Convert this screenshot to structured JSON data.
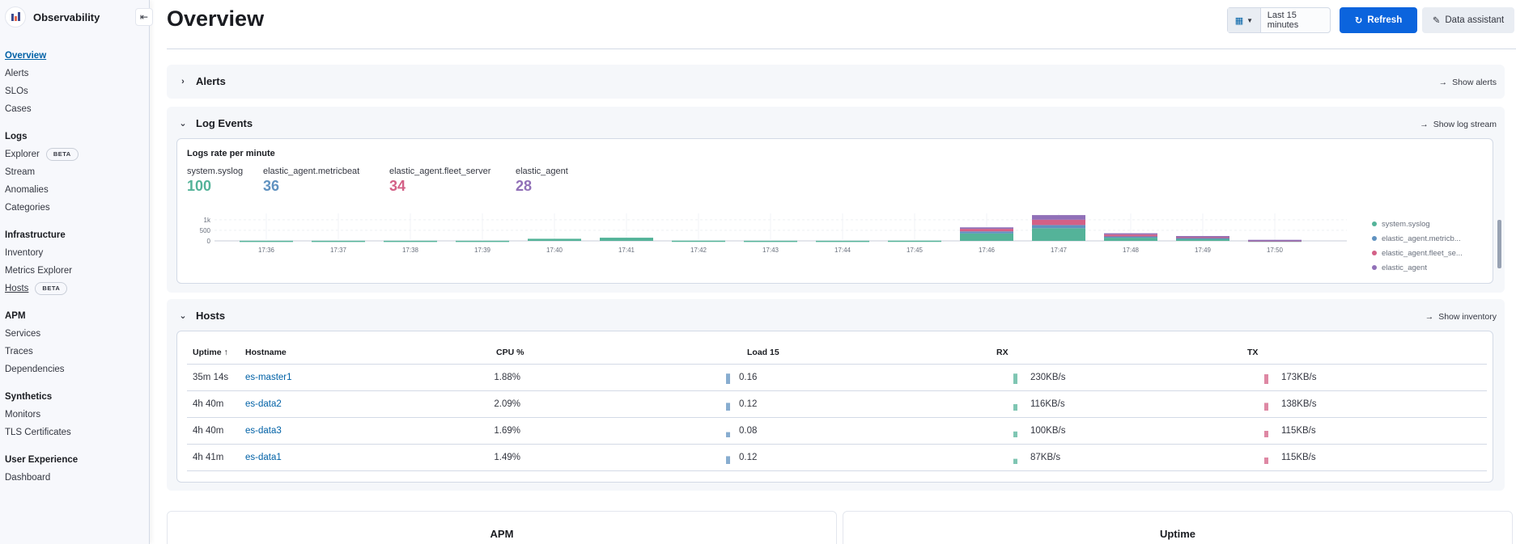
{
  "app": {
    "title": "Observability"
  },
  "sidebar": {
    "items": [
      {
        "label": "Overview",
        "active": true
      },
      {
        "label": "Alerts"
      },
      {
        "label": "SLOs"
      },
      {
        "label": "Cases"
      }
    ],
    "groups": [
      {
        "title": "Logs",
        "items": [
          {
            "label": "Explorer",
            "badge": "BETA"
          },
          {
            "label": "Stream"
          },
          {
            "label": "Anomalies"
          },
          {
            "label": "Categories"
          }
        ]
      },
      {
        "title": "Infrastructure",
        "items": [
          {
            "label": "Inventory"
          },
          {
            "label": "Metrics Explorer"
          },
          {
            "label": "Hosts",
            "badge": "BETA"
          }
        ]
      },
      {
        "title": "APM",
        "items": [
          {
            "label": "Services"
          },
          {
            "label": "Traces"
          },
          {
            "label": "Dependencies"
          }
        ]
      },
      {
        "title": "Synthetics",
        "items": [
          {
            "label": "Monitors"
          },
          {
            "label": "TLS Certificates"
          }
        ]
      },
      {
        "title": "User Experience",
        "items": [
          {
            "label": "Dashboard"
          }
        ]
      }
    ]
  },
  "header": {
    "title": "Overview",
    "date_range": "Last 15 minutes",
    "refresh_label": "Refresh",
    "assistant_label": "Data assistant"
  },
  "alerts": {
    "title": "Alerts",
    "link": "Show alerts"
  },
  "log_events": {
    "title": "Log Events",
    "link": "Show log stream",
    "chart_title": "Logs rate per minute",
    "stats": [
      {
        "name": "system.syslog",
        "value": "100",
        "color": "#54b399"
      },
      {
        "name": "elastic_agent.metricbeat",
        "value": "36",
        "color": "#6092c0"
      },
      {
        "name": "elastic_agent.fleet_server",
        "value": "34",
        "color": "#d36086"
      },
      {
        "name": "elastic_agent",
        "value": "28",
        "color": "#9170b8"
      }
    ],
    "legend": [
      {
        "label": "system.syslog",
        "color": "#54b399"
      },
      {
        "label": "elastic_agent.metricb...",
        "color": "#6092c0"
      },
      {
        "label": "elastic_agent.fleet_se...",
        "color": "#d36086"
      },
      {
        "label": "elastic_agent",
        "color": "#9170b8"
      }
    ]
  },
  "chart_data": {
    "type": "bar",
    "title": "Logs rate per minute",
    "categories": [
      "17:36",
      "17:37",
      "17:38",
      "17:39",
      "17:40",
      "17:41",
      "17:42",
      "17:43",
      "17:44",
      "17:45",
      "17:46",
      "17:47",
      "17:48",
      "17:49",
      "17:50"
    ],
    "y_ticks": [
      "1k",
      "500",
      "0"
    ],
    "ylim": [
      0,
      1300
    ],
    "stacked": true,
    "series": [
      {
        "name": "system.syslog",
        "color": "#54b399",
        "values": [
          5,
          5,
          5,
          5,
          100,
          150,
          10,
          5,
          5,
          10,
          350,
          600,
          150,
          100,
          10
        ]
      },
      {
        "name": "elastic_agent.metricbeat",
        "color": "#6092c0",
        "values": [
          0,
          0,
          0,
          0,
          0,
          0,
          0,
          0,
          0,
          0,
          100,
          150,
          60,
          40,
          10
        ]
      },
      {
        "name": "elastic_agent.fleet_server",
        "color": "#d36086",
        "values": [
          0,
          0,
          0,
          0,
          0,
          0,
          0,
          0,
          0,
          0,
          120,
          250,
          90,
          50,
          10
        ]
      },
      {
        "name": "elastic_agent",
        "color": "#9170b8",
        "values": [
          0,
          0,
          0,
          0,
          0,
          0,
          0,
          0,
          0,
          0,
          70,
          220,
          60,
          40,
          20
        ]
      }
    ]
  },
  "hosts": {
    "title": "Hosts",
    "link": "Show inventory",
    "columns": [
      "Uptime",
      "Hostname",
      "CPU %",
      "Load 15",
      "RX",
      "TX"
    ],
    "sort_indicator": "↑",
    "rows": [
      {
        "uptime": "35m 14s",
        "hostname": "es-master1",
        "cpu": "1.88%",
        "load": "0.16",
        "rx": "230KB/s",
        "tx": "173KB/s",
        "load_level": 0.8,
        "rx_level": 0.8,
        "tx_level": 0.75
      },
      {
        "uptime": "4h 40m",
        "hostname": "es-data2",
        "cpu": "2.09%",
        "load": "0.12",
        "rx": "116KB/s",
        "tx": "138KB/s",
        "load_level": 0.6,
        "rx_level": 0.5,
        "tx_level": 0.6
      },
      {
        "uptime": "4h 40m",
        "hostname": "es-data3",
        "cpu": "1.69%",
        "load": "0.08",
        "rx": "100KB/s",
        "tx": "115KB/s",
        "load_level": 0.4,
        "rx_level": 0.45,
        "tx_level": 0.5
      },
      {
        "uptime": "4h 41m",
        "hostname": "es-data1",
        "cpu": "1.49%",
        "load": "0.12",
        "rx": "87KB/s",
        "tx": "115KB/s",
        "load_level": 0.6,
        "rx_level": 0.4,
        "tx_level": 0.5
      }
    ],
    "spark_colors": {
      "load": "#6092c0",
      "rx": "#54b399",
      "tx": "#d36086"
    }
  },
  "bottom": {
    "apm_title": "APM",
    "uptime_title": "Uptime"
  }
}
